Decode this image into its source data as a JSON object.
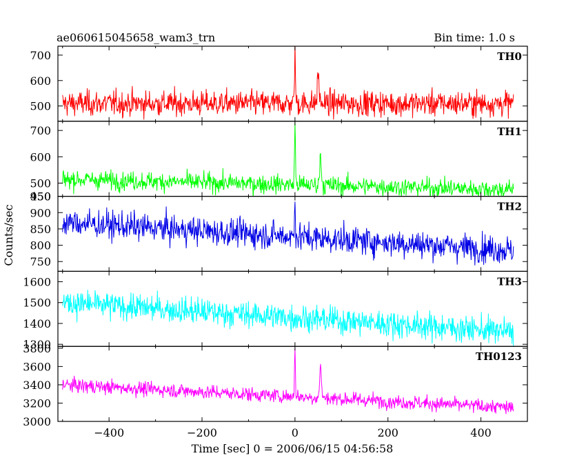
{
  "header": {
    "title": "ae060615045658_wam3_trn",
    "bin_time": "Bin time: 1.0 s"
  },
  "axes": {
    "ylabel": "Counts/sec",
    "xlabel": "Time [sec] 0 = 2006/06/15 04:56:58"
  },
  "chart_data": {
    "type": "line",
    "title": "ae060615045658_wam3_trn",
    "subtitle": "Bin time: 1.0 s",
    "xlabel": "Time [sec] 0 = 2006/06/15 04:56:58",
    "ylabel": "Counts/sec",
    "xlim": [
      -510,
      500
    ],
    "x_range_data": [
      -500,
      470
    ],
    "x_ticks": [
      -400,
      -200,
      0,
      200,
      400
    ],
    "x_tick_labels": [
      "−400",
      "−200",
      "0",
      "200",
      "400"
    ],
    "panels": [
      {
        "name": "TH0",
        "color": "#ff0000",
        "ylim": [
          440,
          735
        ],
        "y_ticks": [
          500,
          600,
          700
        ],
        "baseline_start": 510,
        "baseline_end": 510,
        "noise_std": 35,
        "peaks": [
          {
            "x": 0,
            "value": 735
          },
          {
            "x": 50,
            "value": 620
          }
        ]
      },
      {
        "name": "TH1",
        "color": "#00ff00",
        "ylim": [
          450,
          735
        ],
        "y_ticks": [
          450,
          500,
          600,
          700
        ],
        "baseline_start": 515,
        "baseline_end": 475,
        "noise_std": 25,
        "peaks": [
          {
            "x": 0,
            "value": 730
          },
          {
            "x": 55,
            "value": 600
          }
        ]
      },
      {
        "name": "TH2",
        "color": "#0000e6",
        "ylim": [
          720,
          950
        ],
        "y_ticks": [
          750,
          800,
          850,
          900,
          950
        ],
        "baseline_start": 870,
        "baseline_end": 785,
        "noise_std": 30,
        "peaks": [
          {
            "x": 0,
            "value": 950
          }
        ]
      },
      {
        "name": "TH3",
        "color": "#00ffff",
        "ylim": [
          1290,
          1650
        ],
        "y_ticks": [
          1300,
          1400,
          1500,
          1600
        ],
        "baseline_start": 1500,
        "baseline_end": 1360,
        "noise_std": 45,
        "peaks": []
      },
      {
        "name": "TH0123",
        "color": "#ff00ff",
        "ylim": [
          3000,
          3820
        ],
        "y_ticks": [
          3000,
          3200,
          3400,
          3600,
          3800
        ],
        "baseline_start": 3400,
        "baseline_end": 3150,
        "noise_std": 55,
        "peaks": [
          {
            "x": 0,
            "value": 3820
          },
          {
            "x": 55,
            "value": 3580
          }
        ]
      }
    ]
  }
}
